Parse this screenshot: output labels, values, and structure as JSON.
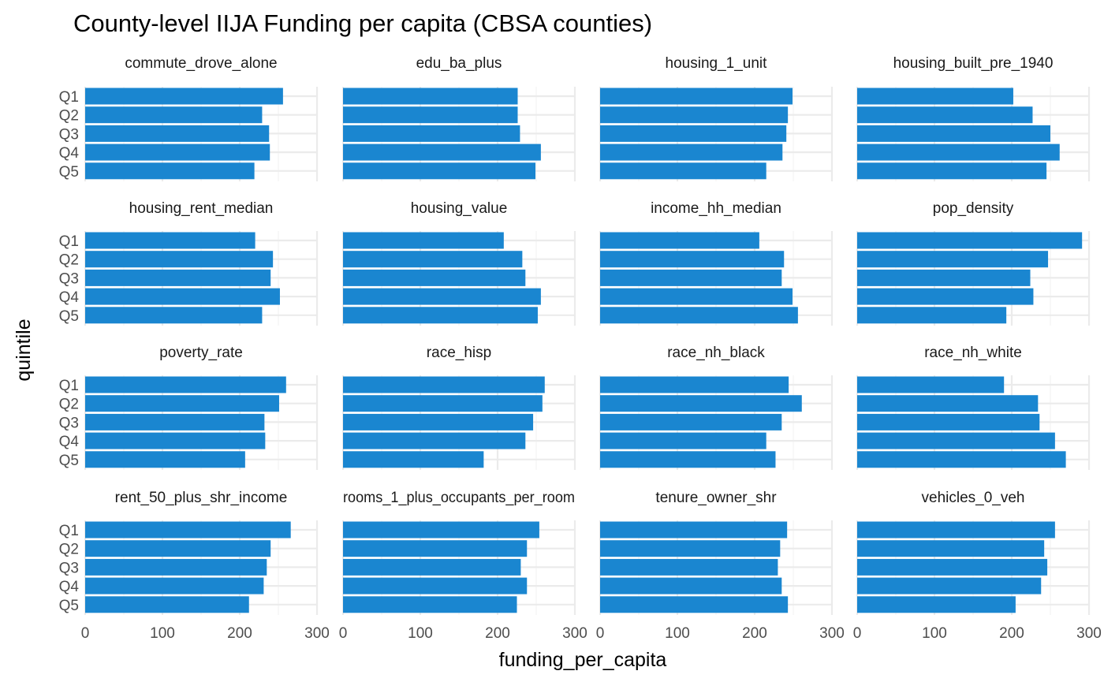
{
  "chart_data": {
    "type": "bar",
    "orientation": "horizontal",
    "title": "County-level IIJA Funding per capita (CBSA counties)",
    "xlabel": "funding_per_capita",
    "ylabel": "quintile",
    "categories": [
      "Q1",
      "Q2",
      "Q3",
      "Q4",
      "Q5"
    ],
    "xlim": [
      0,
      300
    ],
    "xticks": [
      0,
      100,
      200,
      300
    ],
    "grid": true,
    "bar_color": "#1a86d0",
    "facets": [
      {
        "name": "commute_drove_alone",
        "values": [
          256,
          229,
          238,
          239,
          219
        ]
      },
      {
        "name": "edu_ba_plus",
        "values": [
          226,
          226,
          229,
          256,
          249
        ]
      },
      {
        "name": "housing_1_unit",
        "values": [
          249,
          243,
          241,
          236,
          215
        ]
      },
      {
        "name": "housing_built_pre_1940",
        "values": [
          202,
          227,
          250,
          262,
          245
        ]
      },
      {
        "name": "housing_rent_median",
        "values": [
          220,
          243,
          240,
          252,
          229
        ]
      },
      {
        "name": "housing_value",
        "values": [
          208,
          232,
          236,
          256,
          252
        ]
      },
      {
        "name": "income_hh_median",
        "values": [
          206,
          238,
          235,
          249,
          256
        ]
      },
      {
        "name": "pop_density",
        "values": [
          291,
          247,
          224,
          228,
          193
        ]
      },
      {
        "name": "poverty_rate",
        "values": [
          260,
          251,
          232,
          233,
          207
        ]
      },
      {
        "name": "race_hisp",
        "values": [
          261,
          258,
          246,
          236,
          182
        ]
      },
      {
        "name": "race_nh_black",
        "values": [
          244,
          261,
          235,
          215,
          227
        ]
      },
      {
        "name": "race_nh_white",
        "values": [
          190,
          234,
          236,
          256,
          270
        ]
      },
      {
        "name": "rent_50_plus_shr_income",
        "values": [
          266,
          240,
          235,
          231,
          212
        ]
      },
      {
        "name": "rooms_1_plus_occupants_per_room",
        "values": [
          254,
          238,
          230,
          238,
          225
        ]
      },
      {
        "name": "tenure_owner_shr",
        "values": [
          242,
          233,
          230,
          235,
          243
        ]
      },
      {
        "name": "vehicles_0_veh",
        "values": [
          256,
          242,
          246,
          238,
          205
        ]
      }
    ]
  }
}
